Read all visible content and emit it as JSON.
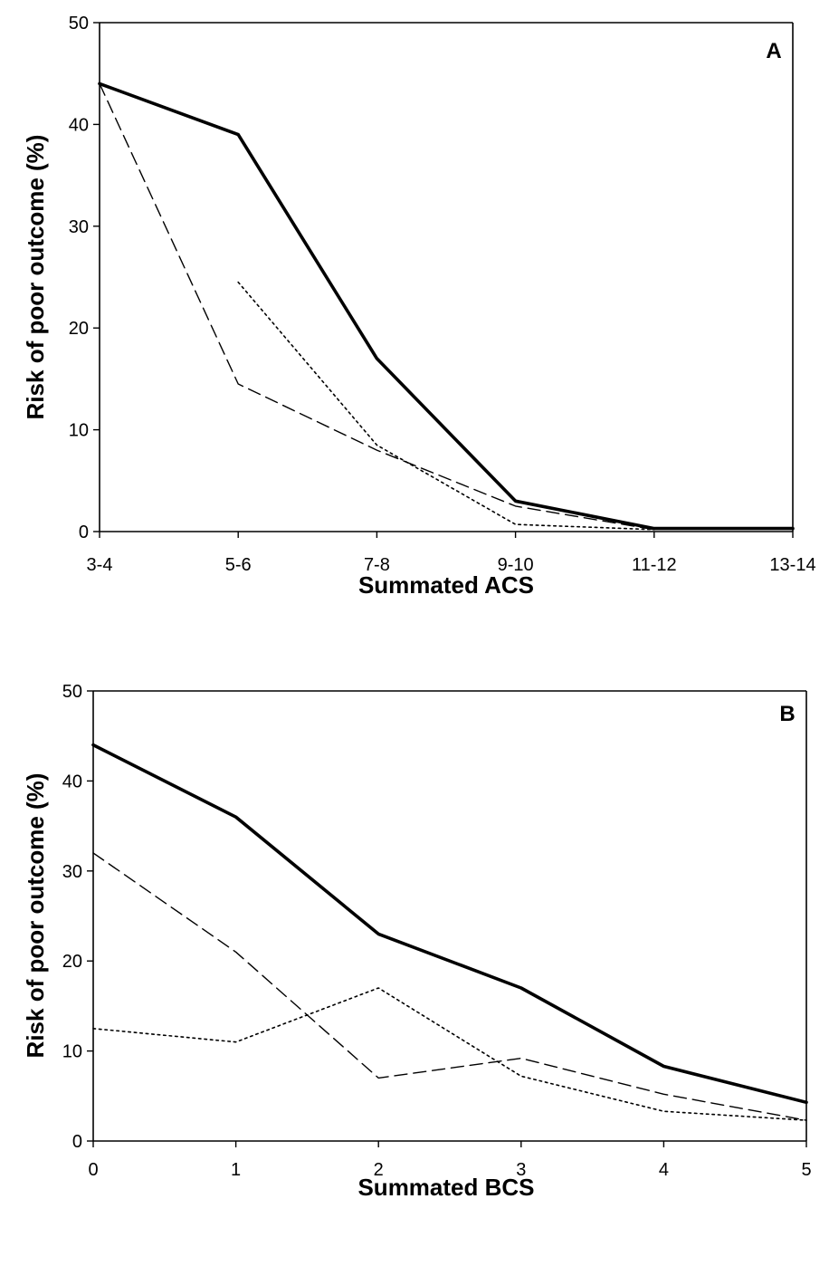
{
  "chart_data": [
    {
      "type": "line",
      "panel_label": "A",
      "title": "",
      "xlabel": "Summated ACS",
      "ylabel": "Risk of poor outcome (%)",
      "categories": [
        "3-4",
        "5-6",
        "7-8",
        "9-10",
        "11-12",
        "13-14"
      ],
      "ylim": [
        0,
        50
      ],
      "yticks": [
        0,
        10,
        20,
        30,
        40,
        50
      ],
      "series": [
        {
          "name": "solid",
          "style": "solid",
          "values": [
            44,
            39,
            17,
            3,
            0.3,
            0.3
          ]
        },
        {
          "name": "dashed",
          "style": "dashed",
          "values": [
            44,
            14.5,
            8,
            2.5,
            0.2,
            null
          ]
        },
        {
          "name": "dotted",
          "style": "dotted",
          "values": [
            null,
            24.5,
            8.5,
            0.7,
            0.2,
            null
          ]
        }
      ]
    },
    {
      "type": "line",
      "panel_label": "B",
      "title": "",
      "xlabel": "Summated BCS",
      "ylabel": "Risk of poor outcome (%)",
      "categories": [
        "0",
        "1",
        "2",
        "3",
        "4",
        "5"
      ],
      "ylim": [
        0,
        50
      ],
      "yticks": [
        0,
        10,
        20,
        30,
        40,
        50
      ],
      "series": [
        {
          "name": "solid",
          "style": "solid",
          "values": [
            44,
            36,
            23,
            17,
            8.3,
            4.3
          ]
        },
        {
          "name": "dashed",
          "style": "dashed",
          "values": [
            32,
            21,
            7,
            9.2,
            5.2,
            2.3
          ]
        },
        {
          "name": "dotted",
          "style": "dotted",
          "values": [
            12.5,
            11,
            17,
            7.2,
            3.3,
            2.3
          ]
        }
      ]
    }
  ]
}
